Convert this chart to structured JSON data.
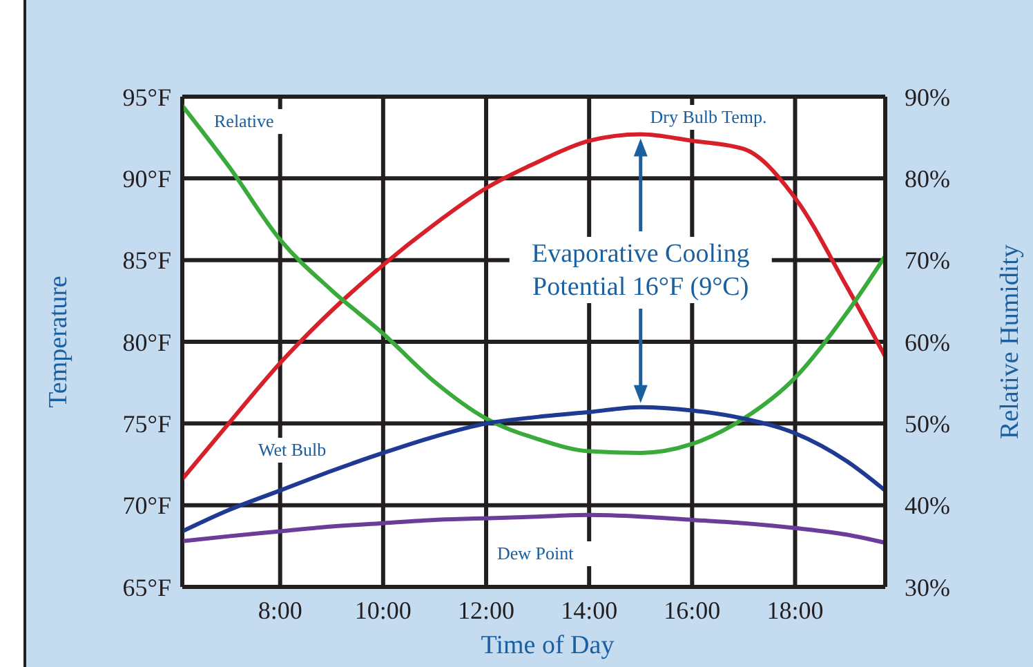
{
  "chart_data": {
    "type": "line",
    "xlabel": "Time of Day",
    "ylabel": "Temperature",
    "y2label": "Relative Humidity",
    "x": [
      6.1,
      7,
      8,
      9,
      10,
      11,
      12,
      13,
      14,
      15,
      16,
      17,
      18,
      19,
      19.75
    ],
    "series": [
      {
        "name": "Dry Bulb Temp.",
        "color": "#d7202a",
        "values": [
          71.6,
          75.0,
          78.7,
          81.9,
          84.7,
          87.2,
          89.4,
          91.0,
          92.3,
          92.7,
          92.3,
          91.8,
          88.8,
          83.4,
          79.1
        ]
      },
      {
        "name": "Relative",
        "color": "#3aaa3a",
        "axis": "y2",
        "values": [
          88.9,
          81.5,
          72.5,
          66.3,
          61.0,
          55.1,
          50.6,
          48.1,
          46.6,
          46.4,
          47.5,
          50.6,
          55.6,
          63.5,
          70.5
        ]
      },
      {
        "name": "Wet Bulb",
        "color": "#1f3a93",
        "values": [
          68.4,
          69.7,
          70.9,
          72.1,
          73.2,
          74.2,
          75.0,
          75.4,
          75.7,
          76.0,
          75.8,
          75.3,
          74.4,
          72.7,
          70.9
        ]
      },
      {
        "name": "Dew Point",
        "color": "#6a3d9a",
        "values": [
          67.8,
          68.1,
          68.4,
          68.7,
          68.9,
          69.1,
          69.2,
          69.3,
          69.4,
          69.3,
          69.1,
          68.9,
          68.6,
          68.2,
          67.7
        ]
      }
    ],
    "xlim": [
      6.1,
      19.75
    ],
    "xticks": [
      {
        "value": 8,
        "label": "8:00"
      },
      {
        "value": 10,
        "label": "10:00"
      },
      {
        "value": 12,
        "label": "12:00"
      },
      {
        "value": 14,
        "label": "14:00"
      },
      {
        "value": 16,
        "label": "16:00"
      },
      {
        "value": 18,
        "label": "18:00"
      }
    ],
    "ylim": [
      65,
      95
    ],
    "yticks": [
      {
        "value": 65,
        "label": "65°F"
      },
      {
        "value": 70,
        "label": "70°F"
      },
      {
        "value": 75,
        "label": "75°F"
      },
      {
        "value": 80,
        "label": "80°F"
      },
      {
        "value": 85,
        "label": "85°F"
      },
      {
        "value": 90,
        "label": "90°F"
      },
      {
        "value": 95,
        "label": "95°F"
      }
    ],
    "y2lim": [
      30,
      90
    ],
    "y2ticks": [
      {
        "value": 30,
        "label": "30%"
      },
      {
        "value": 40,
        "label": "40%"
      },
      {
        "value": 50,
        "label": "50%"
      },
      {
        "value": 60,
        "label": "60%"
      },
      {
        "value": 70,
        "label": "70%"
      },
      {
        "value": 80,
        "label": "80%"
      },
      {
        "value": 90,
        "label": "90%"
      }
    ],
    "annotations": [
      "Evaporative Cooling\nPotential 16°F (9°C)"
    ],
    "grid": true,
    "marker": "none",
    "line_style": "solid"
  }
}
